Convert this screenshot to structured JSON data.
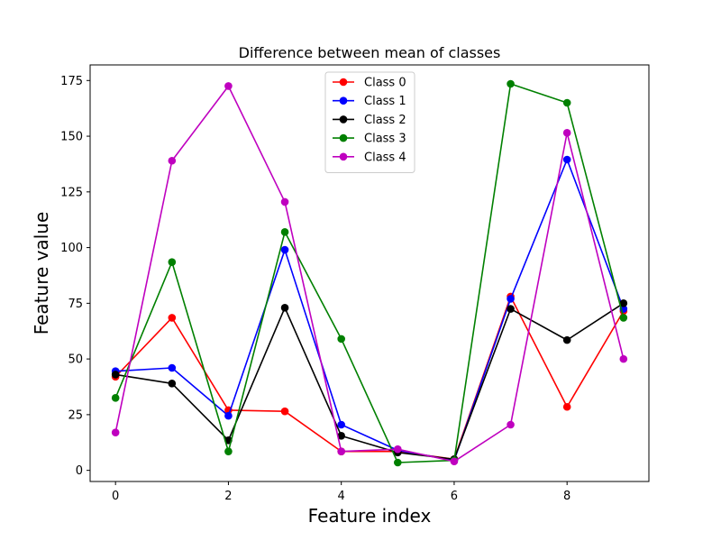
{
  "chart_data": {
    "type": "line",
    "title": "Difference between mean of classes",
    "xlabel": "Feature index",
    "ylabel": "Feature value",
    "xlim": [
      -0.45,
      9.45
    ],
    "ylim": [
      -5,
      182
    ],
    "xticks": [
      0,
      2,
      4,
      6,
      8
    ],
    "yticks": [
      0,
      25,
      50,
      75,
      100,
      125,
      150,
      175
    ],
    "grid": false,
    "legend_position": "upper-center",
    "x": [
      0,
      1,
      2,
      3,
      4,
      5,
      6,
      7,
      8,
      9
    ],
    "series": [
      {
        "name": "Class 0",
        "color": "#ff0000",
        "values": [
          42,
          68.5,
          27,
          26.5,
          8.5,
          8.5,
          5,
          78,
          28.5,
          71.5
        ]
      },
      {
        "name": "Class 1",
        "color": "#0000ff",
        "values": [
          44.5,
          46,
          24.5,
          99,
          20.5,
          9,
          4.5,
          77,
          139.5,
          72.5
        ]
      },
      {
        "name": "Class 2",
        "color": "#000000",
        "values": [
          43,
          39,
          13.5,
          73,
          15.5,
          8,
          5,
          72.5,
          58.5,
          75
        ]
      },
      {
        "name": "Class 3",
        "color": "#008000",
        "values": [
          32.5,
          93.5,
          8.5,
          107,
          59,
          3.5,
          4.5,
          173.5,
          165,
          68.5
        ]
      },
      {
        "name": "Class 4",
        "color": "#bf00bf",
        "values": [
          17,
          139,
          172.5,
          120.5,
          8.5,
          9.5,
          4,
          20.5,
          151.5,
          50
        ]
      }
    ]
  }
}
